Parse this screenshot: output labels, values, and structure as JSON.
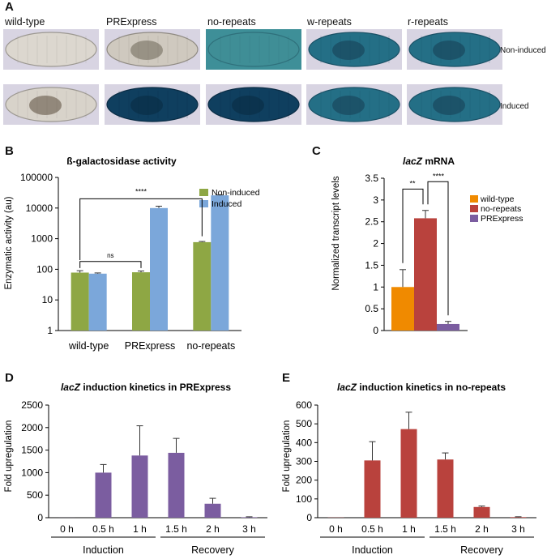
{
  "panelA": {
    "label": "A",
    "columns": [
      "wild-type",
      "PRExpress",
      "no-repeats",
      "w-repeats",
      "r-repeats"
    ],
    "rows": [
      "Non-induced",
      "Induced"
    ],
    "stain_colors": {
      "clear": "#d6d2cc",
      "light_blue": "#3f8e96",
      "medium_blue": "#246f86",
      "dark_blue": "#0f3f5f",
      "background": "#d8d4e2"
    },
    "embryos": [
      [
        "clear",
        "partial",
        "light_blue",
        "medium_blue",
        "medium_blue"
      ],
      [
        "clear_dark",
        "dark_blue",
        "dark_blue",
        "medium_blue",
        "medium_blue"
      ]
    ]
  },
  "panelB": {
    "label": "B",
    "chart_data": {
      "type": "bar",
      "title": "ß-galactosidase activity",
      "ylabel": "Enzymatic activity (au)",
      "yscale": "log",
      "ylim": [
        1,
        100000
      ],
      "yticks": [
        "1",
        "10",
        "100",
        "1000",
        "10000",
        "100000"
      ],
      "categories": [
        "wild-type",
        "PRExpress",
        "no-repeats"
      ],
      "series": [
        {
          "name": "Non-induced",
          "color": "#8ea744",
          "values": [
            78,
            80,
            770
          ],
          "errors": [
            12,
            8,
            40
          ]
        },
        {
          "name": "Induced",
          "color": "#7ba7da",
          "values": [
            72,
            10000,
            26000
          ],
          "errors": [
            4,
            1500,
            800
          ]
        }
      ],
      "legend_position": "top-right",
      "significance": [
        {
          "label": "****",
          "between": [
            "wild-type",
            "no-repeats"
          ]
        },
        {
          "label": "ns",
          "between": [
            "wild-type",
            "PRExpress"
          ]
        }
      ]
    }
  },
  "panelC": {
    "label": "C",
    "chart_data": {
      "type": "bar",
      "title_italic": "lacZ",
      "title_rest": " mRNA",
      "ylabel": "Normalized transcript levels",
      "ylim": [
        0,
        3.5
      ],
      "yticks": [
        "0",
        "0.5",
        "1",
        "1.5",
        "2",
        "2.5",
        "3",
        "3.5"
      ],
      "categories": [
        "wild-type",
        "no-repeats",
        "PRExpress"
      ],
      "values": [
        1.0,
        2.58,
        0.15
      ],
      "errors": [
        0.4,
        0.18,
        0.06
      ],
      "colors": [
        "#f08a00",
        "#b9423d",
        "#7b5da0"
      ],
      "legend_position": "right",
      "significance": [
        {
          "label": "**",
          "between": [
            "wild-type",
            "no-repeats"
          ]
        },
        {
          "label": "****",
          "between": [
            "no-repeats",
            "PRExpress"
          ]
        }
      ]
    }
  },
  "panelD": {
    "label": "D",
    "chart_data": {
      "type": "bar",
      "title_italic": "lacZ",
      "title_rest": " induction kinetics in PRExpress",
      "ylabel": "Fold upregulation",
      "ylim": [
        0,
        2500
      ],
      "yticks": [
        "0",
        "500",
        "1000",
        "1500",
        "2000",
        "2500"
      ],
      "categories": [
        "0 h",
        "0.5 h",
        "1 h",
        "1.5 h",
        "2 h",
        "3 h"
      ],
      "values": [
        1,
        1000,
        1380,
        1440,
        310,
        10
      ],
      "errors": [
        0,
        180,
        660,
        320,
        120,
        10
      ],
      "color": "#7b5da0",
      "groups": [
        {
          "label": "Induction",
          "from": 0,
          "to": 2
        },
        {
          "label": "Recovery",
          "from": 3,
          "to": 5
        }
      ]
    }
  },
  "panelE": {
    "label": "E",
    "chart_data": {
      "type": "bar",
      "title_italic": "lacZ",
      "title_rest": " induction kinetics in no-repeats",
      "ylabel": "Fold upregulation",
      "ylim": [
        0,
        600
      ],
      "yticks": [
        "0",
        "100",
        "200",
        "300",
        "400",
        "500",
        "600"
      ],
      "categories": [
        "0 h",
        "0.5 h",
        "1 h",
        "1.5 h",
        "2 h",
        "3 h"
      ],
      "values": [
        1,
        305,
        472,
        310,
        57,
        3
      ],
      "errors": [
        0,
        100,
        90,
        35,
        5,
        2
      ],
      "color": "#b9423d",
      "groups": [
        {
          "label": "Induction",
          "from": 0,
          "to": 2
        },
        {
          "label": "Recovery",
          "from": 3,
          "to": 5
        }
      ]
    }
  }
}
